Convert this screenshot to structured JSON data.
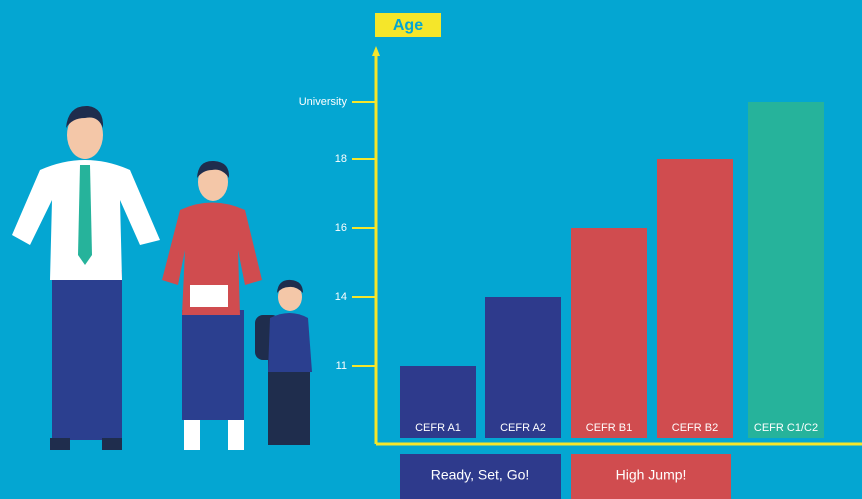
{
  "chart_data": {
    "type": "bar",
    "title": "Age",
    "y_levels": [
      "11",
      "14",
      "16",
      "18",
      "University"
    ],
    "categories": [
      "CEFR A1",
      "CEFR A2",
      "CEFR B1",
      "CEFR B2",
      "CEFR C1/C2"
    ],
    "values": [
      "11",
      "14",
      "16",
      "18",
      "University"
    ],
    "colors": [
      "#2e3a8c",
      "#2e3a8c",
      "#d04c4f",
      "#d04c4f",
      "#26b39b"
    ],
    "groups": [
      "Ready, Set, Go!",
      "High Jump!"
    ]
  }
}
